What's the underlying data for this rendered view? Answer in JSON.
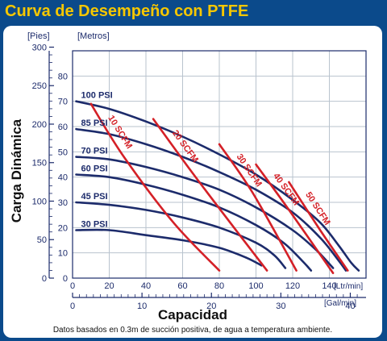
{
  "chart_data": {
    "type": "line",
    "title": "Curva de Desempeño con PTFE",
    "ylabel": "Carga Dinámica",
    "xlabel": "Capacidad",
    "y_unit_left": "[Pies]",
    "y_unit_right": "[Metros]",
    "x_unit_top": "[Ltr/min]",
    "x_unit_bottom": "[Gal/min]",
    "footnote": "Datos basados en 0.3m de succión positiva, de agua a temperatura ambiente.",
    "xlim_lpm": [
      0,
      160
    ],
    "ylim_m": [
      0,
      90
    ],
    "y_ticks_m": [
      "0",
      "10",
      "20",
      "30",
      "40",
      "50",
      "60",
      "70",
      "80"
    ],
    "y_ticks_ft": [
      "0",
      "50",
      "100",
      "150",
      "200",
      "250",
      "300"
    ],
    "x_ticks_lpm": [
      "0",
      "20",
      "40",
      "60",
      "80",
      "100",
      "120",
      "140"
    ],
    "x_ticks_gpm": [
      "0",
      "10",
      "20",
      "30",
      "40"
    ],
    "grid": true,
    "pressure_series": [
      {
        "name": "100 PSI",
        "points": [
          [
            2,
            70
          ],
          [
            20,
            67
          ],
          [
            40,
            62
          ],
          [
            60,
            56
          ],
          [
            80,
            49
          ],
          [
            100,
            41
          ],
          [
            120,
            31
          ],
          [
            135,
            22
          ],
          [
            145,
            13
          ],
          [
            152,
            6
          ],
          [
            156,
            3
          ]
        ]
      },
      {
        "name": "85 PSI",
        "points": [
          [
            2,
            59
          ],
          [
            20,
            57
          ],
          [
            40,
            53
          ],
          [
            60,
            48
          ],
          [
            80,
            42
          ],
          [
            100,
            35
          ],
          [
            120,
            26
          ],
          [
            135,
            16
          ],
          [
            145,
            7
          ],
          [
            149,
            3
          ]
        ]
      },
      {
        "name": "70 PSI",
        "points": [
          [
            2,
            48
          ],
          [
            20,
            47
          ],
          [
            40,
            44
          ],
          [
            60,
            40
          ],
          [
            80,
            35
          ],
          [
            100,
            28
          ],
          [
            120,
            19
          ],
          [
            133,
            11
          ],
          [
            142,
            4
          ]
        ]
      },
      {
        "name": "60 PSI",
        "points": [
          [
            2,
            41
          ],
          [
            20,
            40
          ],
          [
            40,
            37
          ],
          [
            60,
            33
          ],
          [
            80,
            28
          ],
          [
            100,
            21
          ],
          [
            115,
            14
          ],
          [
            125,
            7
          ],
          [
            130,
            3
          ]
        ]
      },
      {
        "name": "45 PSI",
        "points": [
          [
            2,
            30
          ],
          [
            20,
            29
          ],
          [
            40,
            27
          ],
          [
            60,
            24
          ],
          [
            80,
            20
          ],
          [
            100,
            14
          ],
          [
            110,
            9
          ],
          [
            116,
            4
          ]
        ]
      },
      {
        "name": "30 PSI",
        "points": [
          [
            2,
            19
          ],
          [
            20,
            19
          ],
          [
            40,
            17
          ],
          [
            60,
            15
          ],
          [
            80,
            12
          ],
          [
            95,
            8
          ],
          [
            103,
            5
          ]
        ]
      }
    ],
    "air_series": [
      {
        "name": "10 SCFM",
        "points": [
          [
            10,
            69
          ],
          [
            28,
            48
          ],
          [
            55,
            22
          ],
          [
            80,
            3
          ]
        ]
      },
      {
        "name": "20 SCFM",
        "points": [
          [
            44,
            63
          ],
          [
            65,
            42
          ],
          [
            88,
            20
          ],
          [
            106,
            3
          ]
        ]
      },
      {
        "name": "30 SCFM",
        "points": [
          [
            80,
            53
          ],
          [
            98,
            34
          ],
          [
            122,
            3
          ]
        ]
      },
      {
        "name": "40 SCFM",
        "points": [
          [
            100,
            45
          ],
          [
            118,
            27
          ],
          [
            142,
            2
          ]
        ]
      },
      {
        "name": "50 SCFM",
        "points": [
          [
            118,
            38
          ],
          [
            135,
            19
          ],
          [
            150,
            3
          ]
        ]
      }
    ],
    "colors": {
      "pressure": "#1c2b6b",
      "air": "#d42027",
      "grid": "#b9c3ce",
      "title": "#f6c700",
      "background": "#0b4a8b"
    }
  }
}
